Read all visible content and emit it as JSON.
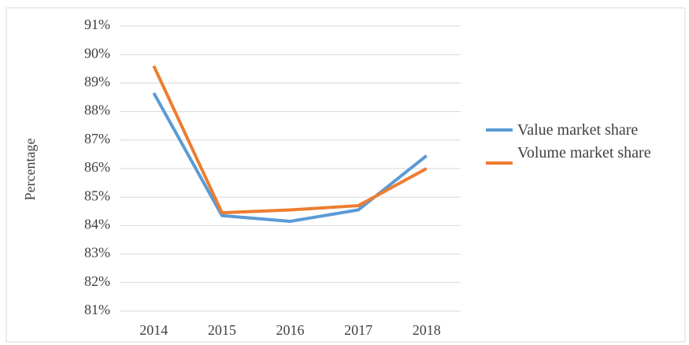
{
  "chart_data": {
    "type": "line",
    "y_label": "Percentage",
    "categories": [
      "2014",
      "2015",
      "2016",
      "2017",
      "2018"
    ],
    "series": [
      {
        "name": "Value market share",
        "color": "#5b9bd5",
        "values": [
          88.65,
          84.35,
          84.15,
          84.55,
          86.45
        ]
      },
      {
        "name": "Volume market share",
        "color": "#ed7d31",
        "values": [
          89.6,
          84.45,
          84.55,
          84.7,
          86.0
        ]
      }
    ],
    "ylim": [
      81,
      91
    ],
    "yticks": [
      {
        "value": 81,
        "label": "81%"
      },
      {
        "value": 82,
        "label": "82%"
      },
      {
        "value": 83,
        "label": "83%"
      },
      {
        "value": 84,
        "label": "84%"
      },
      {
        "value": 85,
        "label": "85%"
      },
      {
        "value": 86,
        "label": "86%"
      },
      {
        "value": 87,
        "label": "87%"
      },
      {
        "value": 88,
        "label": "88%"
      },
      {
        "value": 89,
        "label": "89%"
      },
      {
        "value": 90,
        "label": "90%"
      },
      {
        "value": 91,
        "label": "91%"
      }
    ],
    "grid": true,
    "legend": "right"
  }
}
